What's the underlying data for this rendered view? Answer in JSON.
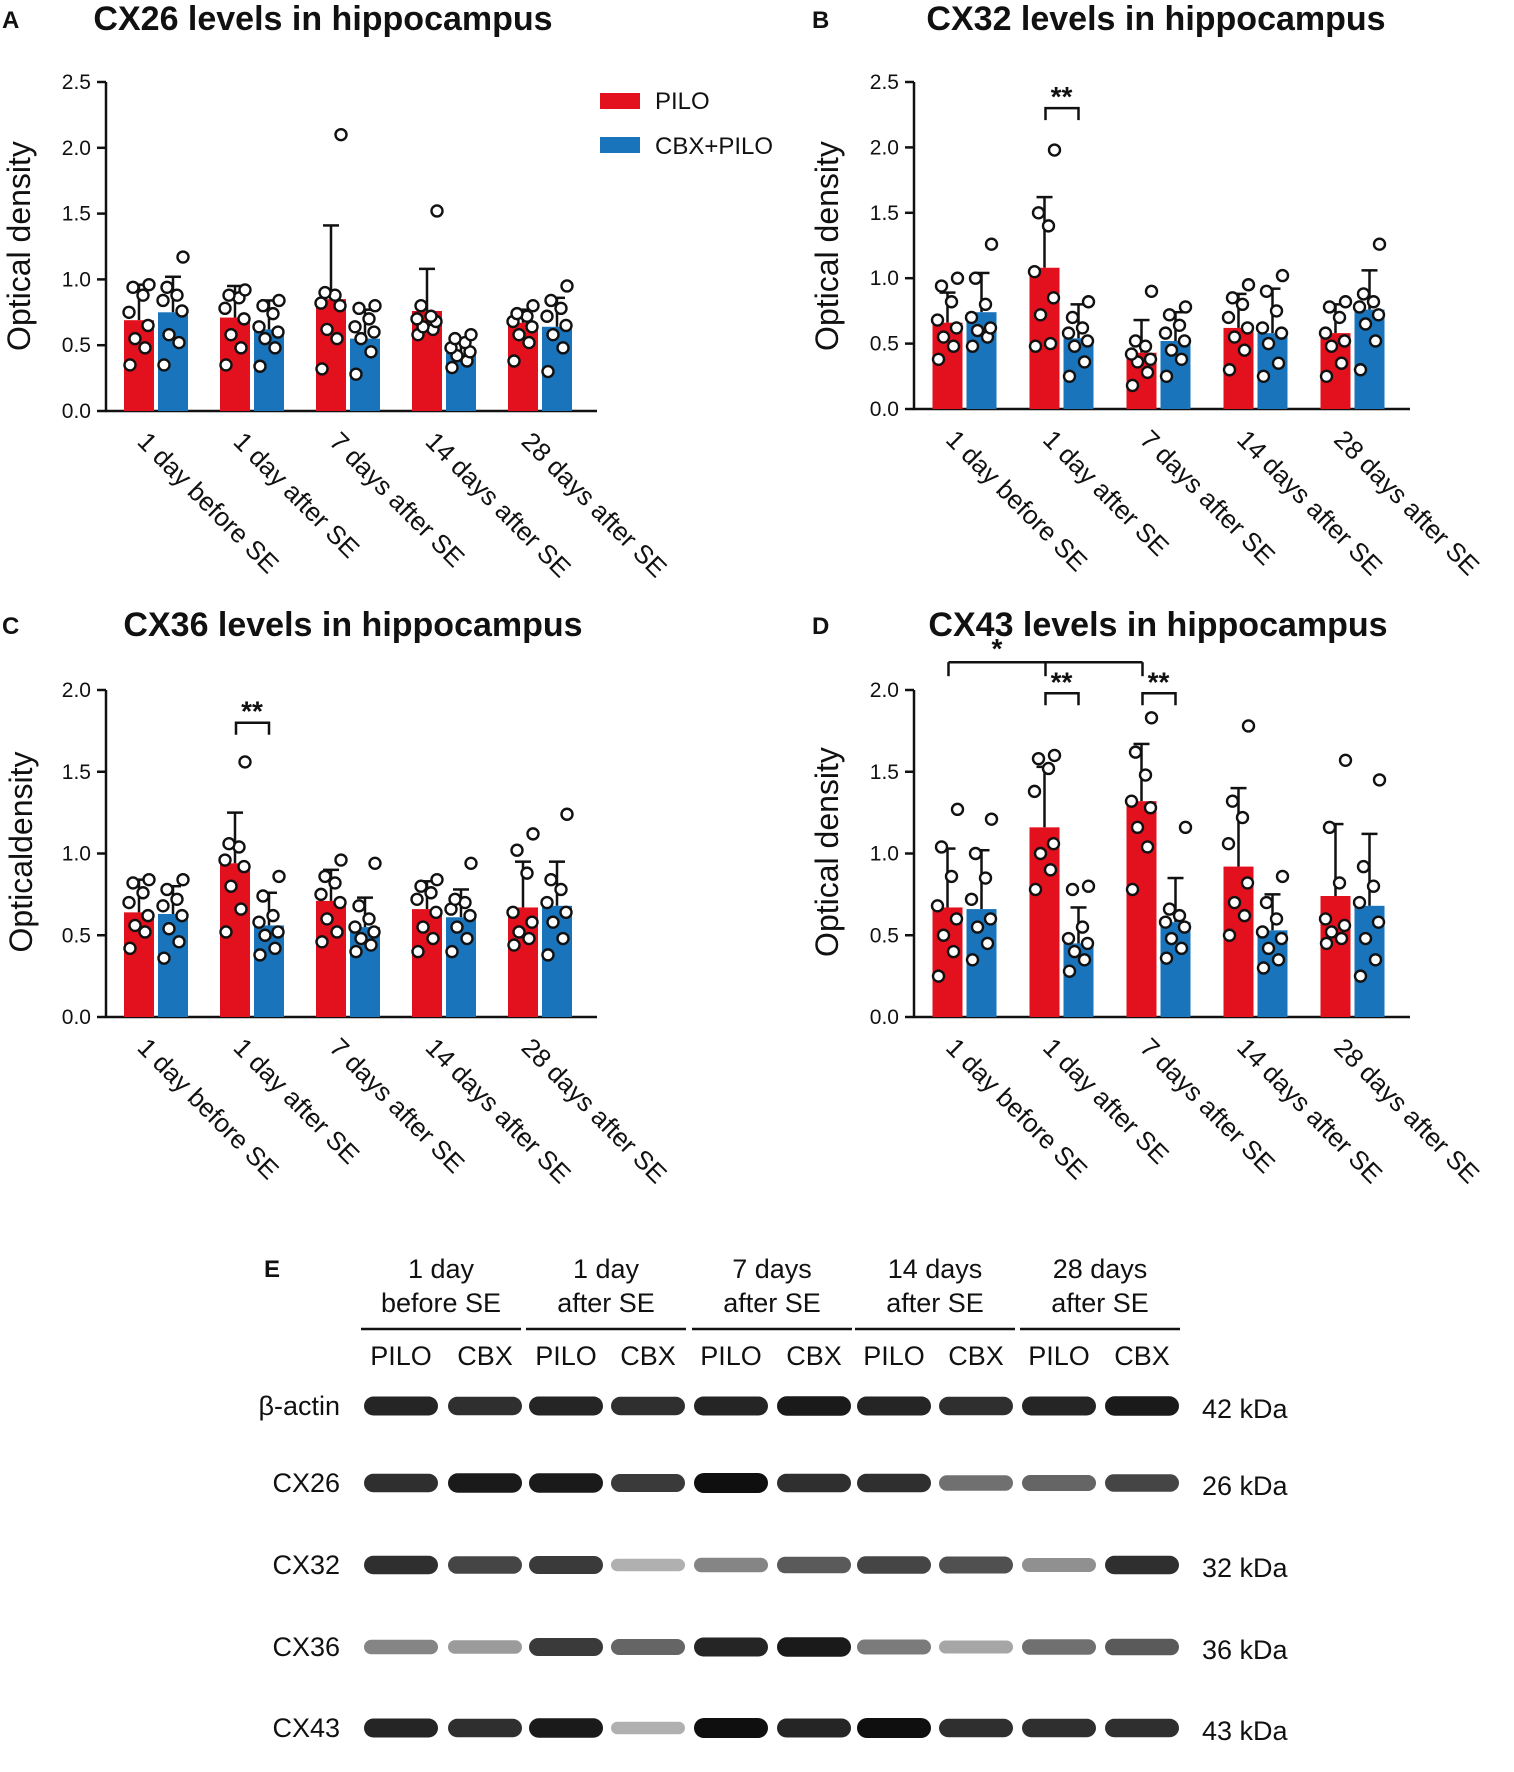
{
  "legend": {
    "series_a": "PILO",
    "series_b": "CBX+PILO"
  },
  "colors": {
    "pilo": "#e3101e",
    "cbx": "#1a74bb"
  },
  "chart_data": [
    {
      "label": "A",
      "type": "bar",
      "title": "CX26 levels in hippocampus",
      "ylabel": "Optical density",
      "ylim": [
        0,
        2.5
      ],
      "yticks": [
        "0.0",
        "0.5",
        "1.0",
        "1.5",
        "2.0",
        "2.5"
      ],
      "categories": [
        "1 day before SE",
        "1 day after SE",
        "7 days after SE",
        "14 days after SE",
        "28 days after SE"
      ],
      "series": [
        {
          "name": "PILO",
          "values": [
            0.69,
            0.71,
            0.85,
            0.76,
            0.67
          ],
          "errors": [
            0.27,
            0.24,
            0.56,
            0.32,
            0.1
          ],
          "points": [
            [
              0.35,
              0.48,
              0.55,
              0.65,
              0.75,
              0.88,
              0.94,
              0.96
            ],
            [
              0.35,
              0.48,
              0.58,
              0.7,
              0.78,
              0.86,
              0.88,
              0.92
            ],
            [
              0.32,
              0.55,
              0.62,
              0.8,
              0.82,
              0.88,
              0.9,
              2.1
            ],
            [
              0.58,
              0.62,
              0.64,
              0.68,
              0.7,
              0.72,
              0.8,
              1.52
            ],
            [
              0.38,
              0.52,
              0.58,
              0.64,
              0.68,
              0.72,
              0.74,
              0.8
            ]
          ]
        },
        {
          "name": "CBX+PILO",
          "values": [
            0.75,
            0.62,
            0.55,
            0.44,
            0.64
          ],
          "errors": [
            0.27,
            0.22,
            0.22,
            0.1,
            0.22
          ],
          "points": [
            [
              0.35,
              0.52,
              0.58,
              0.76,
              0.84,
              0.88,
              0.94,
              1.17
            ],
            [
              0.34,
              0.48,
              0.55,
              0.6,
              0.64,
              0.74,
              0.8,
              0.84
            ],
            [
              0.28,
              0.45,
              0.55,
              0.6,
              0.64,
              0.7,
              0.78,
              0.8
            ],
            [
              0.33,
              0.38,
              0.42,
              0.45,
              0.48,
              0.52,
              0.55,
              0.58
            ],
            [
              0.3,
              0.48,
              0.58,
              0.65,
              0.72,
              0.78,
              0.84,
              0.95
            ]
          ]
        }
      ]
    },
    {
      "label": "B",
      "type": "bar",
      "title": "CX32 levels in hippocampus",
      "ylabel": "Optical density",
      "ylim": [
        0,
        2.5
      ],
      "yticks": [
        "0.0",
        "0.5",
        "1.0",
        "1.5",
        "2.0",
        "2.5"
      ],
      "categories": [
        "1 day before SE",
        "1 day after SE",
        "7 days after SE",
        "14 days after SE",
        "28 days after SE"
      ],
      "annotations": [
        {
          "text": "**",
          "from": 1,
          "to": 1,
          "level": 2.3
        }
      ],
      "series": [
        {
          "name": "PILO",
          "values": [
            0.66,
            1.08,
            0.43,
            0.62,
            0.58
          ],
          "errors": [
            0.23,
            0.54,
            0.25,
            0.26,
            0.22
          ],
          "points": [
            [
              0.38,
              0.48,
              0.55,
              0.62,
              0.68,
              0.82,
              0.94,
              1.0
            ],
            [
              0.48,
              0.5,
              0.72,
              0.85,
              1.05,
              1.4,
              1.5,
              1.98
            ],
            [
              0.18,
              0.28,
              0.36,
              0.38,
              0.42,
              0.48,
              0.52,
              0.9
            ],
            [
              0.3,
              0.45,
              0.55,
              0.62,
              0.7,
              0.8,
              0.85,
              0.95
            ],
            [
              0.25,
              0.35,
              0.48,
              0.52,
              0.58,
              0.7,
              0.78,
              0.82
            ]
          ]
        },
        {
          "name": "CBX+PILO",
          "values": [
            0.74,
            0.54,
            0.52,
            0.58,
            0.76
          ],
          "errors": [
            0.3,
            0.26,
            0.22,
            0.34,
            0.3
          ],
          "points": [
            [
              0.48,
              0.55,
              0.6,
              0.62,
              0.7,
              0.8,
              1.0,
              1.26
            ],
            [
              0.25,
              0.36,
              0.48,
              0.52,
              0.58,
              0.62,
              0.7,
              0.82
            ],
            [
              0.25,
              0.38,
              0.45,
              0.52,
              0.58,
              0.64,
              0.72,
              0.78
            ],
            [
              0.25,
              0.35,
              0.5,
              0.58,
              0.62,
              0.75,
              0.9,
              1.02
            ],
            [
              0.3,
              0.52,
              0.65,
              0.72,
              0.78,
              0.82,
              0.88,
              1.26
            ]
          ]
        }
      ]
    },
    {
      "label": "C",
      "type": "bar",
      "title": "CX36 levels in hippocampus",
      "ylabel": "Opticaldensity",
      "ylim": [
        0,
        2.0
      ],
      "yticks": [
        "0.0",
        "0.5",
        "1.0",
        "1.5",
        "2.0"
      ],
      "categories": [
        "1 day before SE",
        "1 day after SE",
        "7 days after SE",
        "14 days after SE",
        "28 days after SE"
      ],
      "annotations": [
        {
          "text": "**",
          "from": 1,
          "to": 1,
          "level": 1.8
        }
      ],
      "series": [
        {
          "name": "PILO",
          "values": [
            0.64,
            0.94,
            0.71,
            0.66,
            0.67
          ],
          "errors": [
            0.2,
            0.31,
            0.19,
            0.17,
            0.28
          ],
          "points": [
            [
              0.42,
              0.52,
              0.56,
              0.62,
              0.7,
              0.76,
              0.82,
              0.84
            ],
            [
              0.52,
              0.66,
              0.8,
              0.92,
              0.96,
              1.04,
              1.06,
              1.56
            ],
            [
              0.46,
              0.52,
              0.6,
              0.7,
              0.75,
              0.82,
              0.86,
              0.96
            ],
            [
              0.4,
              0.48,
              0.55,
              0.64,
              0.72,
              0.76,
              0.8,
              0.84
            ],
            [
              0.44,
              0.48,
              0.52,
              0.58,
              0.64,
              0.88,
              1.02,
              1.12
            ]
          ]
        },
        {
          "name": "CBX+PILO",
          "values": [
            0.63,
            0.56,
            0.55,
            0.61,
            0.68
          ],
          "errors": [
            0.17,
            0.2,
            0.18,
            0.17,
            0.27
          ],
          "points": [
            [
              0.36,
              0.46,
              0.54,
              0.62,
              0.68,
              0.72,
              0.78,
              0.84
            ],
            [
              0.38,
              0.42,
              0.5,
              0.52,
              0.58,
              0.62,
              0.74,
              0.86
            ],
            [
              0.4,
              0.44,
              0.48,
              0.52,
              0.55,
              0.6,
              0.68,
              0.94
            ],
            [
              0.4,
              0.48,
              0.55,
              0.62,
              0.66,
              0.7,
              0.72,
              0.94
            ],
            [
              0.38,
              0.48,
              0.58,
              0.64,
              0.7,
              0.78,
              0.84,
              1.24
            ]
          ]
        }
      ]
    },
    {
      "label": "D",
      "type": "bar",
      "title": "CX43 levels in hippocampus",
      "ylabel": "Optical density",
      "ylim": [
        0,
        2.0
      ],
      "yticks": [
        "0.0",
        "0.5",
        "1.0",
        "1.5",
        "2.0"
      ],
      "categories": [
        "1 day before SE",
        "1 day after SE",
        "7 days after SE",
        "14 days after SE",
        "28 days after SE"
      ],
      "annotations": [
        {
          "text": "*",
          "from": 0,
          "to": 2,
          "level": 2.17,
          "type": "multi"
        },
        {
          "text": "**",
          "from": 1,
          "to": 1,
          "level": 1.98
        },
        {
          "text": "**",
          "from": 2,
          "to": 2,
          "level": 1.98
        }
      ],
      "series": [
        {
          "name": "PILO",
          "values": [
            0.67,
            1.16,
            1.32,
            0.92,
            0.74
          ],
          "errors": [
            0.36,
            0.37,
            0.35,
            0.48,
            0.44
          ],
          "points": [
            [
              0.25,
              0.4,
              0.5,
              0.6,
              0.68,
              0.86,
              1.04,
              1.27
            ],
            [
              0.78,
              0.9,
              1.0,
              1.06,
              1.38,
              1.52,
              1.58,
              1.6
            ],
            [
              0.78,
              1.04,
              1.16,
              1.28,
              1.32,
              1.48,
              1.62,
              1.83
            ],
            [
              0.5,
              0.62,
              0.7,
              0.82,
              1.06,
              1.22,
              1.32,
              1.78
            ],
            [
              0.45,
              0.48,
              0.52,
              0.56,
              0.6,
              0.82,
              1.16,
              1.57
            ]
          ]
        },
        {
          "name": "CBX+PILO",
          "values": [
            0.66,
            0.45,
            0.58,
            0.53,
            0.68
          ],
          "errors": [
            0.36,
            0.22,
            0.27,
            0.22,
            0.44
          ],
          "points": [
            [
              0.35,
              0.45,
              0.55,
              0.6,
              0.72,
              0.85,
              1.0,
              1.21
            ],
            [
              0.28,
              0.35,
              0.4,
              0.45,
              0.48,
              0.55,
              0.78,
              0.8
            ],
            [
              0.36,
              0.42,
              0.48,
              0.55,
              0.58,
              0.62,
              0.66,
              1.16
            ],
            [
              0.3,
              0.35,
              0.42,
              0.48,
              0.52,
              0.6,
              0.7,
              0.86
            ],
            [
              0.25,
              0.35,
              0.48,
              0.58,
              0.7,
              0.8,
              0.92,
              1.45
            ]
          ]
        }
      ]
    }
  ],
  "blot": {
    "label": "E",
    "groups": [
      {
        "line1": "1 day",
        "line2": "before SE"
      },
      {
        "line1": "1 day",
        "line2": "after SE"
      },
      {
        "line1": "7 days",
        "line2": "after SE"
      },
      {
        "line1": "14 days",
        "line2": "after SE"
      },
      {
        "line1": "28 days",
        "line2": "after SE"
      }
    ],
    "lanes": [
      "PILO",
      "CBX",
      "PILO",
      "CBX",
      "PILO",
      "CBX",
      "PILO",
      "CBX",
      "PILO",
      "CBX"
    ],
    "rows": [
      {
        "name": "β-actin",
        "kda": "42 kDa",
        "intensity": [
          0.9,
          0.85,
          0.9,
          0.85,
          0.9,
          0.95,
          0.9,
          0.85,
          0.9,
          0.95
        ]
      },
      {
        "name": "CX26",
        "kda": "26 kDa",
        "intensity": [
          0.85,
          0.95,
          0.95,
          0.8,
          1.0,
          0.85,
          0.85,
          0.55,
          0.6,
          0.75
        ]
      },
      {
        "name": "CX32",
        "kda": "32 kDa",
        "intensity": [
          0.85,
          0.75,
          0.8,
          0.25,
          0.45,
          0.65,
          0.75,
          0.7,
          0.4,
          0.85
        ]
      },
      {
        "name": "CX36",
        "kda": "36 kDa",
        "intensity": [
          0.45,
          0.35,
          0.8,
          0.6,
          0.9,
          0.95,
          0.5,
          0.3,
          0.55,
          0.65
        ]
      },
      {
        "name": "CX43",
        "kda": "43 kDa",
        "intensity": [
          0.9,
          0.85,
          0.95,
          0.25,
          1.0,
          0.9,
          1.0,
          0.85,
          0.85,
          0.85
        ]
      }
    ]
  }
}
